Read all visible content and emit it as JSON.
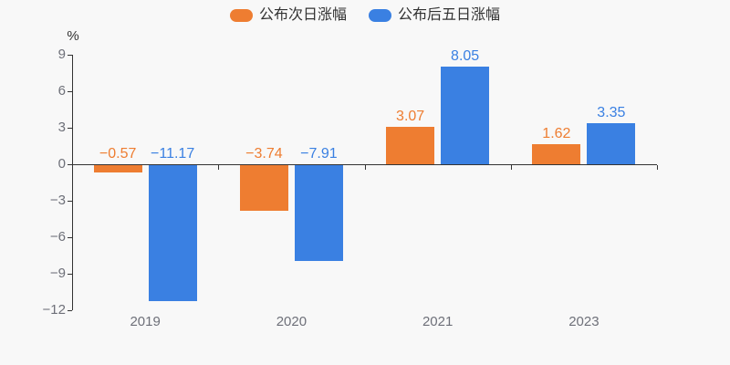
{
  "chart_data": {
    "type": "bar",
    "title": "",
    "categories": [
      "2019",
      "2020",
      "2021",
      "2023"
    ],
    "series": [
      {
        "name": "公布次日涨幅",
        "color": "#ee7d31",
        "values": [
          -0.57,
          -3.74,
          3.07,
          1.62
        ]
      },
      {
        "name": "公布后五日涨幅",
        "color": "#3a80e2",
        "values": [
          -11.17,
          -7.91,
          8.05,
          3.35
        ]
      }
    ],
    "value_labels": [
      [
        "−0.57",
        "−3.74",
        "3.07",
        "1.62"
      ],
      [
        "−11.17",
        "−7.91",
        "8.05",
        "3.35"
      ]
    ],
    "xlabel": "",
    "ylabel": "%",
    "ylim": [
      -12,
      9
    ],
    "yticks": [
      9,
      6,
      3,
      0,
      -3,
      -6,
      -9,
      -12
    ],
    "ytick_labels": [
      "9",
      "6",
      "3",
      "0",
      "−3",
      "−6",
      "−9",
      "−12"
    ],
    "grid": false,
    "legend_position": "top",
    "label_position": "top"
  },
  "colors": {
    "background": "#f8f8f8",
    "axis": "#333333",
    "tick_label": "#6e7079",
    "legend_text": "#333333"
  }
}
